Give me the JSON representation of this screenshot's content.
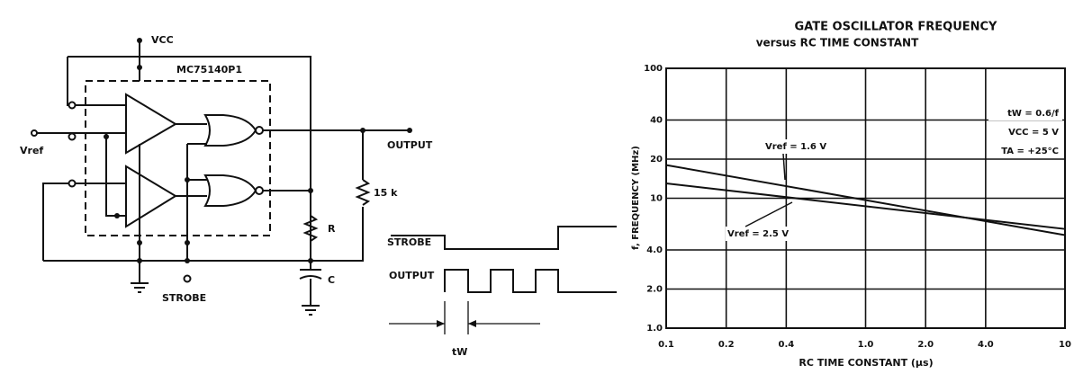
{
  "circuit": {
    "vcc": "VCC",
    "part": "MC75140P1",
    "vref": "Vref",
    "output": "OUTPUT",
    "resistor_15k": "15 k",
    "resistor": "R",
    "capacitor": "C",
    "strobe": "STROBE"
  },
  "timing": {
    "strobe": "STROBE",
    "output": "OUTPUT",
    "tw": "tW"
  },
  "chart_data": {
    "type": "line",
    "title": "GATE OSCILLATOR FREQUENCY",
    "subtitle": "versus RC TIME CONSTANT",
    "x_label": "RC TIME CONSTANT (µs)",
    "y_label": "f, FREQUENCY (MHz)",
    "log_x": true,
    "log_y": true,
    "grid": true,
    "xlim": [
      0.1,
      10
    ],
    "ylim": [
      1,
      100
    ],
    "xticks": [
      0.1,
      0.2,
      0.4,
      {
        "value": 1,
        "label": "1.0"
      },
      {
        "value": 2,
        "label": "2.0"
      },
      {
        "value": 4,
        "label": "4.0"
      },
      10
    ],
    "yticks": [
      {
        "value": 1,
        "label": "1.0"
      },
      {
        "value": 2,
        "label": "2.0"
      },
      {
        "value": 4,
        "label": "4.0"
      },
      10,
      20,
      40,
      100
    ],
    "x": [
      0.1,
      10
    ],
    "series": [
      {
        "name": "Vref = 1.6 V",
        "color": "#111111",
        "values": [
          18,
          5.2
        ]
      },
      {
        "name": "Vref = 2.5 V",
        "color": "#111111",
        "values": [
          13,
          5.8
        ]
      }
    ],
    "annotations": [
      "tW = 0.6/f",
      "VCC = 5 V",
      "TA = +25°C"
    ]
  }
}
